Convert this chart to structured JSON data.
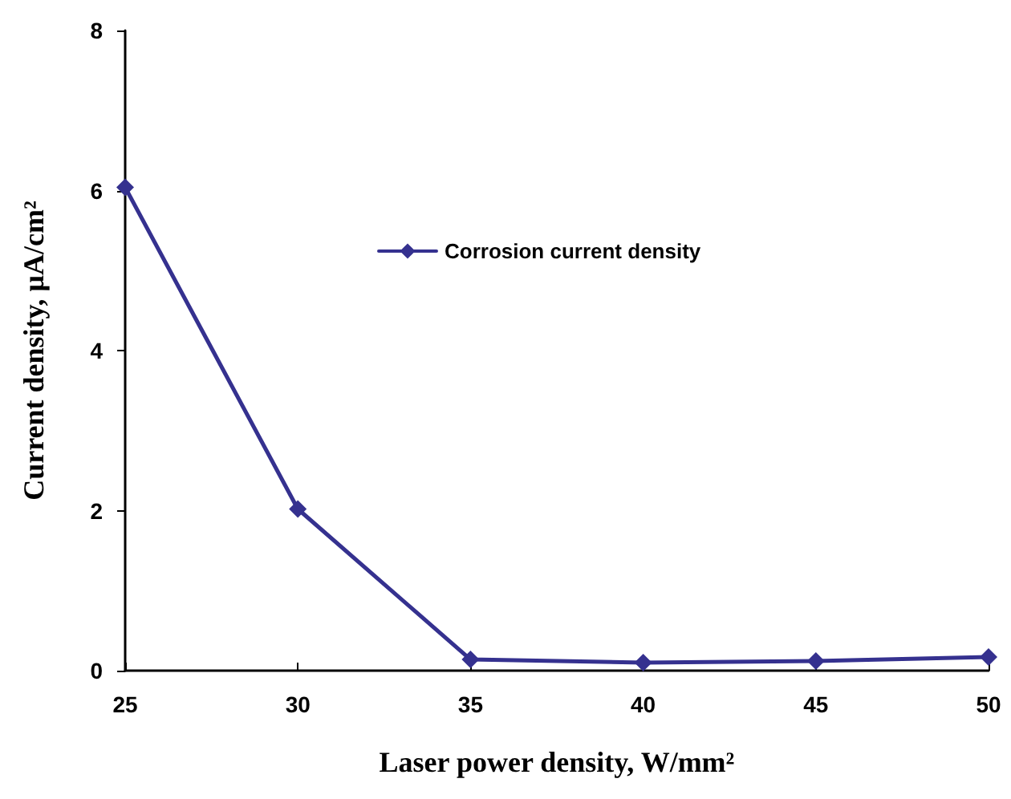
{
  "chart_data": {
    "type": "line",
    "xlabel": "Laser power density, W/mm²",
    "ylabel": "Current density, μA/cm²",
    "x": [
      25,
      30,
      35,
      40,
      45,
      50
    ],
    "series": [
      {
        "name": "Corrosion current density",
        "color": "#35318f",
        "values": [
          6.04,
          2.02,
          0.14,
          0.1,
          0.12,
          0.17
        ]
      }
    ],
    "xlim": [
      25,
      50
    ],
    "xticks": [
      25,
      30,
      35,
      40,
      45,
      50
    ],
    "ylim": [
      0,
      8
    ],
    "yticks": [
      0,
      2,
      4,
      6,
      8
    ],
    "grid": false,
    "legend": "top right",
    "marker": "diamond",
    "line_style": "solid"
  }
}
